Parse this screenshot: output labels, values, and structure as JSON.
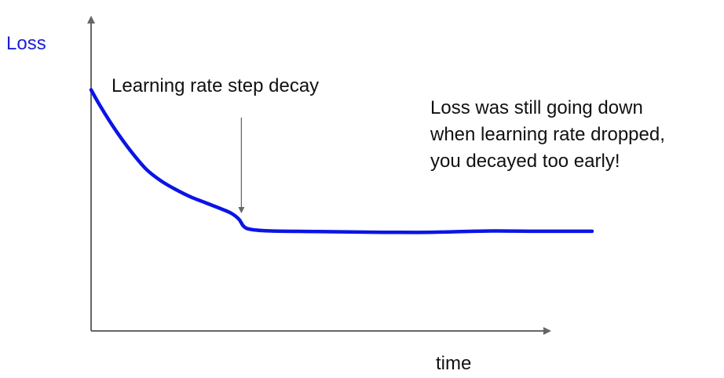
{
  "chart_data": {
    "type": "line",
    "title": "",
    "xlabel": "time",
    "ylabel": "Loss",
    "xlim": [
      0,
      100
    ],
    "ylim": [
      0,
      100
    ],
    "grid": false,
    "legend": "none",
    "series": [
      {
        "points": [
          [
            0,
            78
          ],
          [
            2,
            72
          ],
          [
            5,
            64
          ],
          [
            8,
            57
          ],
          [
            11,
            51
          ],
          [
            14,
            47
          ],
          [
            17,
            44
          ],
          [
            20,
            41.5
          ],
          [
            23,
            39.5
          ],
          [
            26,
            37.5
          ],
          [
            28,
            36
          ],
          [
            29.5,
            34
          ],
          [
            30.5,
            31.5
          ],
          [
            32,
            30.5
          ],
          [
            36,
            30
          ],
          [
            45,
            29.8
          ],
          [
            55,
            29.6
          ],
          [
            65,
            29.5
          ],
          [
            72,
            29.7
          ],
          [
            80,
            30
          ],
          [
            90,
            29.9
          ],
          [
            100,
            29.9
          ]
        ]
      }
    ],
    "annotations": [
      {
        "id": "step-decay",
        "text": "Learning rate step decay",
        "arrow_to": [
          30,
          36
        ]
      },
      {
        "id": "note",
        "lines": [
          "Loss was still going down",
          "when learning rate dropped,",
          "you decayed too early!"
        ]
      }
    ]
  },
  "colors": {
    "curve": "#0b14e6",
    "ylabel": "#1a1fd6",
    "axis": "#666666",
    "text": "#111111"
  }
}
